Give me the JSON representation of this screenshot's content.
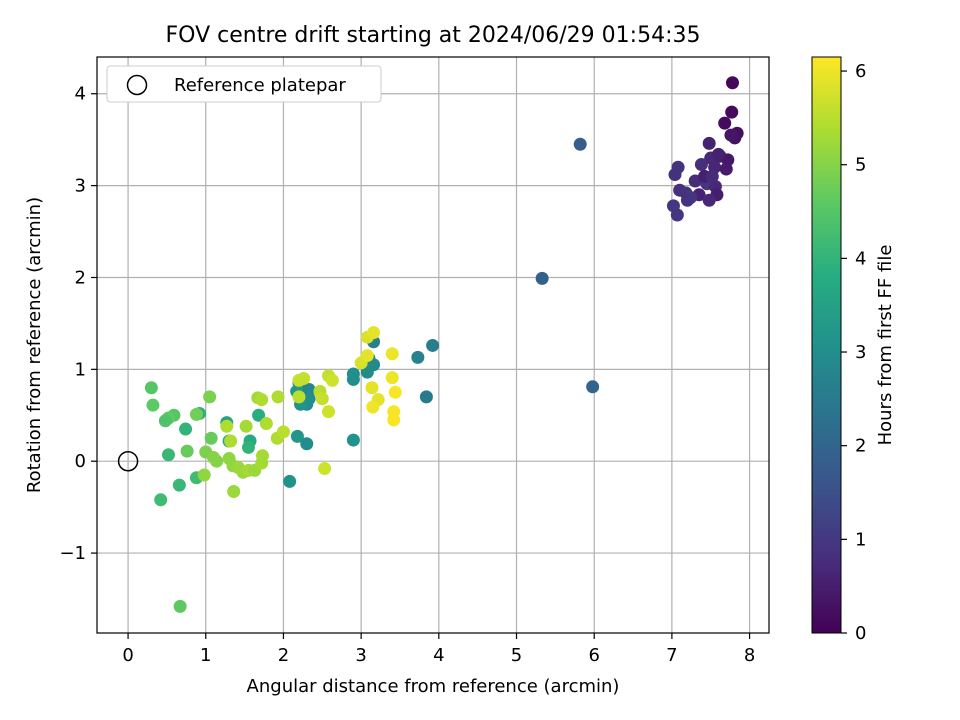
{
  "chart_data": {
    "type": "scatter",
    "title": "FOV centre drift starting at 2024/06/29 01:54:35",
    "xlabel": "Angular distance from reference (arcmin)",
    "ylabel": "Rotation from reference (arcmin)",
    "xlim": [
      -0.4,
      8.25
    ],
    "ylim": [
      -1.87,
      4.4
    ],
    "xticks": [
      0,
      1,
      2,
      3,
      4,
      5,
      6,
      7,
      8
    ],
    "xtick_labels": [
      "0",
      "1",
      "2",
      "3",
      "4",
      "5",
      "6",
      "7",
      "8"
    ],
    "yticks": [
      -1,
      0,
      1,
      2,
      3,
      4
    ],
    "ytick_labels": [
      "−1",
      "0",
      "1",
      "2",
      "3",
      "4"
    ],
    "grid": true,
    "legend": {
      "position": "top-left",
      "entries": [
        "Reference platepar"
      ]
    },
    "reference_point": {
      "x": 0,
      "y": 0,
      "marker": "open circle"
    },
    "colorbar": {
      "label": "Hours from first FF file",
      "range": [
        0,
        6.15
      ],
      "ticks": [
        0,
        1,
        2,
        3,
        4,
        5,
        6
      ],
      "tick_labels": [
        "0",
        "1",
        "2",
        "3",
        "4",
        "5",
        "6"
      ],
      "colormap": "viridis"
    },
    "series": [
      {
        "points": [
          {
            "x": 7.78,
            "y": 4.12,
            "t": 0.1
          },
          {
            "x": 7.77,
            "y": 3.8,
            "t": 0.15
          },
          {
            "x": 7.68,
            "y": 3.68,
            "t": 0.2
          },
          {
            "x": 7.84,
            "y": 3.57,
            "t": 0.25
          },
          {
            "x": 7.81,
            "y": 3.52,
            "t": 0.3
          },
          {
            "x": 7.76,
            "y": 3.55,
            "t": 0.35
          },
          {
            "x": 7.48,
            "y": 3.46,
            "t": 0.6
          },
          {
            "x": 7.62,
            "y": 3.32,
            "t": 0.5
          },
          {
            "x": 7.72,
            "y": 3.28,
            "t": 0.4
          },
          {
            "x": 7.5,
            "y": 3.3,
            "t": 0.7
          },
          {
            "x": 7.38,
            "y": 3.23,
            "t": 0.8
          },
          {
            "x": 7.55,
            "y": 3.2,
            "t": 0.65
          },
          {
            "x": 7.7,
            "y": 3.18,
            "t": 0.45
          },
          {
            "x": 7.08,
            "y": 3.2,
            "t": 0.9
          },
          {
            "x": 7.04,
            "y": 3.12,
            "t": 0.85
          },
          {
            "x": 7.3,
            "y": 3.05,
            "t": 0.75
          },
          {
            "x": 7.45,
            "y": 3.02,
            "t": 0.95
          },
          {
            "x": 7.56,
            "y": 2.99,
            "t": 0.7
          },
          {
            "x": 7.1,
            "y": 2.95,
            "t": 0.8
          },
          {
            "x": 7.18,
            "y": 2.92,
            "t": 0.9
          },
          {
            "x": 7.35,
            "y": 2.9,
            "t": 0.6
          },
          {
            "x": 7.58,
            "y": 2.9,
            "t": 0.5
          },
          {
            "x": 7.24,
            "y": 2.87,
            "t": 1.0
          },
          {
            "x": 7.2,
            "y": 2.84,
            "t": 0.9
          },
          {
            "x": 7.48,
            "y": 2.84,
            "t": 0.7
          },
          {
            "x": 7.02,
            "y": 2.78,
            "t": 1.0
          },
          {
            "x": 7.07,
            "y": 2.68,
            "t": 0.95
          },
          {
            "x": 7.42,
            "y": 3.1,
            "t": 0.55
          },
          {
            "x": 7.6,
            "y": 3.34,
            "t": 0.6
          },
          {
            "x": 7.52,
            "y": 3.1,
            "t": 0.75
          },
          {
            "x": 5.82,
            "y": 3.45,
            "t": 1.8
          },
          {
            "x": 5.33,
            "y": 1.99,
            "t": 1.9
          },
          {
            "x": 5.98,
            "y": 0.81,
            "t": 2.0
          },
          {
            "x": 3.92,
            "y": 1.26,
            "t": 2.6
          },
          {
            "x": 3.73,
            "y": 1.13,
            "t": 2.7
          },
          {
            "x": 3.84,
            "y": 0.7,
            "t": 2.5
          },
          {
            "x": 3.16,
            "y": 1.3,
            "t": 2.6
          },
          {
            "x": 3.1,
            "y": 1.12,
            "t": 2.8
          },
          {
            "x": 3.16,
            "y": 1.05,
            "t": 2.9
          },
          {
            "x": 3.08,
            "y": 0.97,
            "t": 2.9
          },
          {
            "x": 2.9,
            "y": 0.95,
            "t": 3.0
          },
          {
            "x": 2.9,
            "y": 0.89,
            "t": 3.0
          },
          {
            "x": 2.9,
            "y": 0.23,
            "t": 3.1
          },
          {
            "x": 2.2,
            "y": 0.85,
            "t": 3.1
          },
          {
            "x": 2.17,
            "y": 0.76,
            "t": 3.2
          },
          {
            "x": 2.33,
            "y": 0.78,
            "t": 2.8
          },
          {
            "x": 2.33,
            "y": 0.68,
            "t": 2.9
          },
          {
            "x": 2.3,
            "y": 0.62,
            "t": 3.0
          },
          {
            "x": 2.22,
            "y": 0.62,
            "t": 3.1
          },
          {
            "x": 2.18,
            "y": 0.27,
            "t": 3.2
          },
          {
            "x": 2.3,
            "y": 0.19,
            "t": 3.0
          },
          {
            "x": 2.08,
            "y": -0.22,
            "t": 3.1
          },
          {
            "x": 1.27,
            "y": 0.42,
            "t": 3.6
          },
          {
            "x": 1.57,
            "y": 0.22,
            "t": 3.7
          },
          {
            "x": 1.3,
            "y": 0.22,
            "t": 3.7
          },
          {
            "x": 1.68,
            "y": 0.5,
            "t": 3.8
          },
          {
            "x": 0.92,
            "y": 0.52,
            "t": 3.9
          },
          {
            "x": 0.74,
            "y": 0.35,
            "t": 4.0
          },
          {
            "x": 0.52,
            "y": 0.07,
            "t": 4.1
          },
          {
            "x": 0.42,
            "y": -0.42,
            "t": 4.2
          },
          {
            "x": 0.66,
            "y": -0.26,
            "t": 4.1
          },
          {
            "x": 0.88,
            "y": -0.18,
            "t": 4.2
          },
          {
            "x": 1.55,
            "y": 0.15,
            "t": 4.0
          },
          {
            "x": 0.3,
            "y": 0.8,
            "t": 4.5
          },
          {
            "x": 0.32,
            "y": 0.61,
            "t": 4.6
          },
          {
            "x": 0.59,
            "y": 0.5,
            "t": 4.5
          },
          {
            "x": 0.52,
            "y": 0.47,
            "t": 4.6
          },
          {
            "x": 0.48,
            "y": 0.44,
            "t": 4.4
          },
          {
            "x": 0.76,
            "y": 0.11,
            "t": 4.7
          },
          {
            "x": 0.67,
            "y": -1.58,
            "t": 4.6
          },
          {
            "x": 1.07,
            "y": 0.25,
            "t": 4.7
          },
          {
            "x": 0.88,
            "y": 0.51,
            "t": 4.8
          },
          {
            "x": 1.05,
            "y": 0.7,
            "t": 4.9
          },
          {
            "x": 1.0,
            "y": 0.1,
            "t": 4.9
          },
          {
            "x": 1.1,
            "y": 0.04,
            "t": 5.0
          },
          {
            "x": 1.14,
            "y": 0.0,
            "t": 5.0
          },
          {
            "x": 0.98,
            "y": -0.15,
            "t": 5.1
          },
          {
            "x": 1.3,
            "y": 0.03,
            "t": 5.1
          },
          {
            "x": 1.36,
            "y": -0.33,
            "t": 5.2
          },
          {
            "x": 1.35,
            "y": -0.05,
            "t": 5.1
          },
          {
            "x": 1.42,
            "y": -0.07,
            "t": 5.2
          },
          {
            "x": 1.48,
            "y": -0.12,
            "t": 5.2
          },
          {
            "x": 1.55,
            "y": -0.1,
            "t": 5.3
          },
          {
            "x": 1.63,
            "y": -0.1,
            "t": 5.2
          },
          {
            "x": 1.72,
            "y": -0.02,
            "t": 5.3
          },
          {
            "x": 1.73,
            "y": 0.06,
            "t": 5.3
          },
          {
            "x": 1.52,
            "y": 0.38,
            "t": 5.3
          },
          {
            "x": 1.32,
            "y": 0.22,
            "t": 5.4
          },
          {
            "x": 1.27,
            "y": 0.38,
            "t": 5.4
          },
          {
            "x": 1.78,
            "y": 0.41,
            "t": 5.4
          },
          {
            "x": 1.67,
            "y": 0.69,
            "t": 5.3
          },
          {
            "x": 1.72,
            "y": 0.67,
            "t": 5.4
          },
          {
            "x": 1.93,
            "y": 0.7,
            "t": 5.4
          },
          {
            "x": 1.92,
            "y": 0.25,
            "t": 5.4
          },
          {
            "x": 2.0,
            "y": 0.32,
            "t": 5.5
          },
          {
            "x": 2.2,
            "y": 0.7,
            "t": 5.5
          },
          {
            "x": 2.2,
            "y": 0.88,
            "t": 5.6
          },
          {
            "x": 2.26,
            "y": 0.9,
            "t": 5.6
          },
          {
            "x": 2.47,
            "y": 0.76,
            "t": 5.5
          },
          {
            "x": 2.5,
            "y": 0.68,
            "t": 5.6
          },
          {
            "x": 2.58,
            "y": 0.93,
            "t": 5.6
          },
          {
            "x": 2.63,
            "y": 0.88,
            "t": 5.7
          },
          {
            "x": 2.58,
            "y": 0.54,
            "t": 5.7
          },
          {
            "x": 2.53,
            "y": -0.08,
            "t": 5.7
          },
          {
            "x": 3.08,
            "y": 1.35,
            "t": 5.8
          },
          {
            "x": 3.16,
            "y": 1.4,
            "t": 5.9
          },
          {
            "x": 3.0,
            "y": 1.07,
            "t": 5.8
          },
          {
            "x": 3.08,
            "y": 1.15,
            "t": 5.9
          },
          {
            "x": 3.14,
            "y": 0.8,
            "t": 5.9
          },
          {
            "x": 3.22,
            "y": 0.67,
            "t": 5.9
          },
          {
            "x": 3.15,
            "y": 0.59,
            "t": 6.0
          },
          {
            "x": 3.4,
            "y": 1.17,
            "t": 6.0
          },
          {
            "x": 3.4,
            "y": 0.91,
            "t": 6.0
          },
          {
            "x": 3.44,
            "y": 0.75,
            "t": 6.1
          },
          {
            "x": 3.42,
            "y": 0.54,
            "t": 6.1
          },
          {
            "x": 3.42,
            "y": 0.45,
            "t": 6.1
          }
        ]
      }
    ]
  }
}
